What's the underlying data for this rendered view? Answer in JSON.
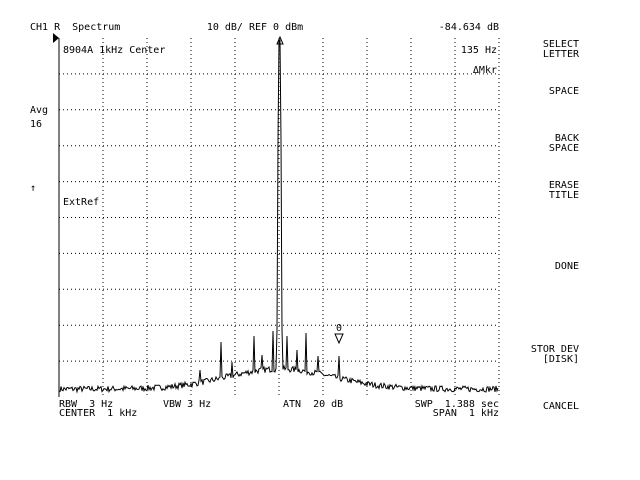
{
  "header": {
    "channel": "CH1 R  Spectrum",
    "scale": "10 dB/ REF 0 dBm",
    "marker_readout": "-84.634 dB"
  },
  "screen": {
    "title": "8904A 1kHz Center",
    "marker_freq": "135 Hz",
    "marker_mode": "ΔMkr",
    "ext_ref": "ExtRef",
    "marker_label": "0"
  },
  "left": {
    "avg_label": "Avg",
    "avg_count": "16",
    "arrow": "↑"
  },
  "footer": {
    "rbw": "RBW  3 Hz",
    "vbw": "VBW 3 Hz",
    "atn": "ATN  20 dB",
    "swp": "SWP  1.388 sec",
    "center": "CENTER  1 kHz",
    "span": "SPAN  1 kHz"
  },
  "softkeys": [
    {
      "lines": [
        "SELECT",
        "LETTER"
      ]
    },
    {
      "lines": [
        "SPACE"
      ]
    },
    {
      "lines": [
        "BACK",
        "SPACE"
      ]
    },
    {
      "lines": [
        "ERASE",
        "TITLE"
      ]
    },
    {
      "lines": [
        "DONE"
      ]
    },
    {
      "lines": [
        "STOR DEV",
        "[DISK]"
      ]
    },
    {
      "lines": [
        "CANCEL"
      ]
    }
  ]
}
